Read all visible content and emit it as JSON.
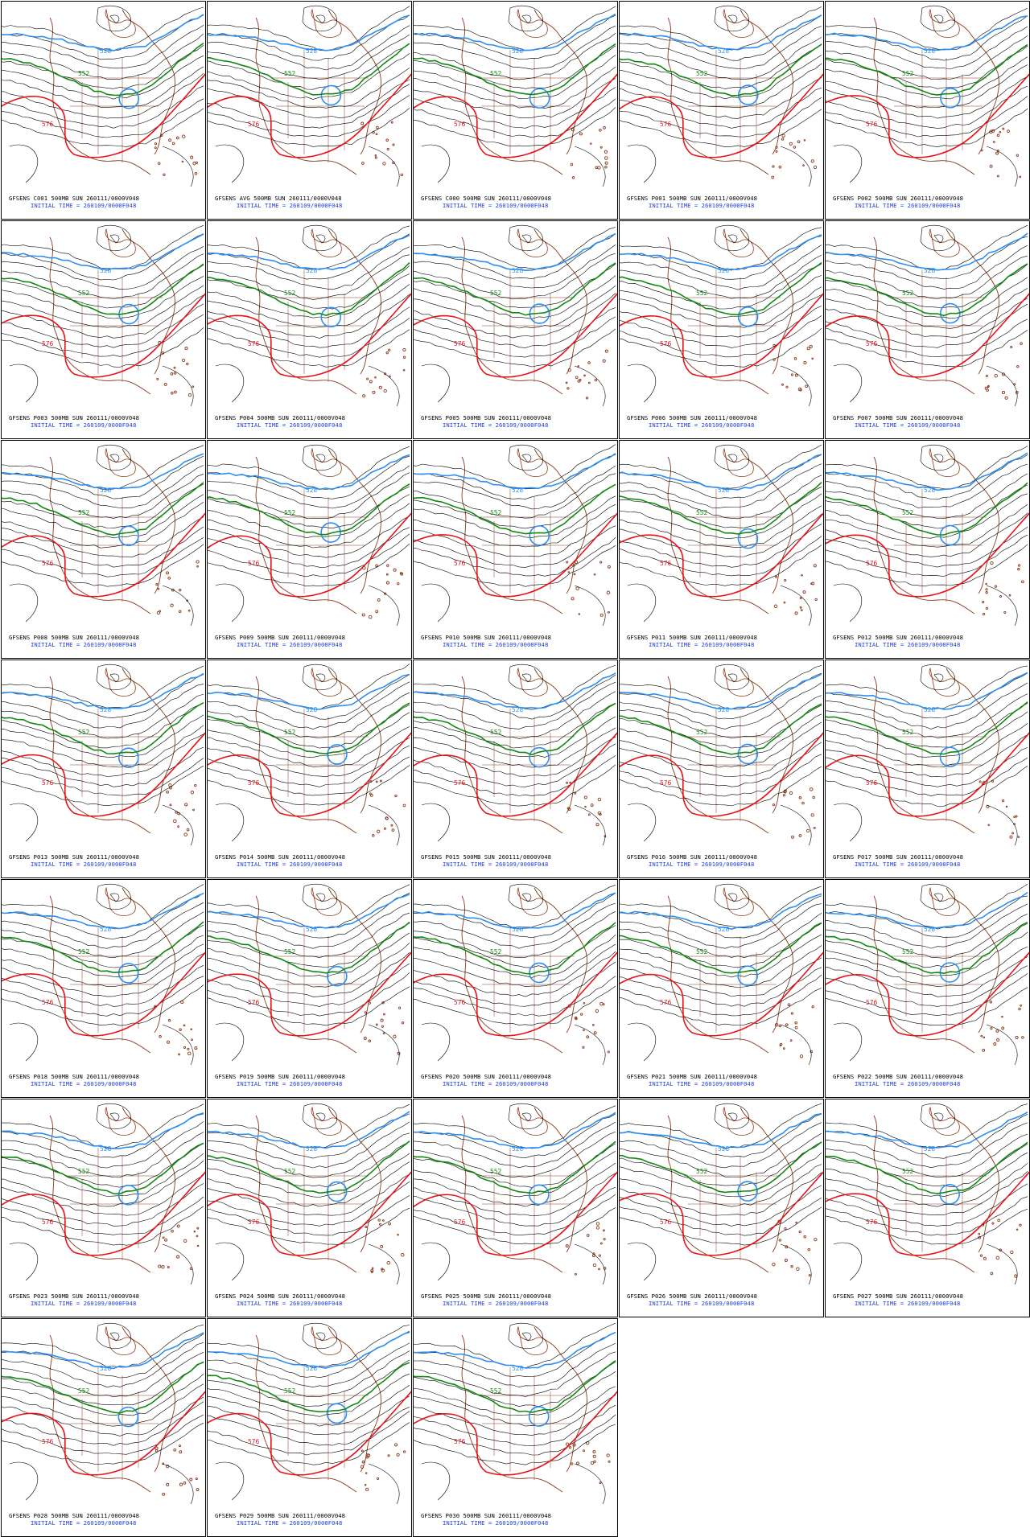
{
  "layout": {
    "columns": 5
  },
  "caption_template": {
    "suffix": " 500MB SUN 260111/0000V048",
    "init_line": "INITIAL TIME = 260109/0000F048"
  },
  "contour_labels": {
    "blue": "528",
    "green": "552",
    "red": "576"
  },
  "colors": {
    "coastline": "#8b3a1a",
    "thin_contour": "#000000",
    "contour_528": "#2d8ff0",
    "contour_552": "#128a12",
    "contour_576": "#e8121a",
    "caption_member": "#000000",
    "caption_init": "#1c3ee0"
  },
  "panels": [
    {
      "member": "GFSENS C001"
    },
    {
      "member": "GFSENS AVG"
    },
    {
      "member": "GFSENS C000"
    },
    {
      "member": "GFSENS P001"
    },
    {
      "member": "GFSENS P002"
    },
    {
      "member": "GFSENS P003"
    },
    {
      "member": "GFSENS P004"
    },
    {
      "member": "GFSENS P005"
    },
    {
      "member": "GFSENS P006"
    },
    {
      "member": "GFSENS P007"
    },
    {
      "member": "GFSENS P008"
    },
    {
      "member": "GFSENS P009"
    },
    {
      "member": "GFSENS P010"
    },
    {
      "member": "GFSENS P011"
    },
    {
      "member": "GFSENS P012"
    },
    {
      "member": "GFSENS P013"
    },
    {
      "member": "GFSENS P014"
    },
    {
      "member": "GFSENS P015"
    },
    {
      "member": "GFSENS P016"
    },
    {
      "member": "GFSENS P017"
    },
    {
      "member": "GFSENS P018"
    },
    {
      "member": "GFSENS P019"
    },
    {
      "member": "GFSENS P020"
    },
    {
      "member": "GFSENS P021"
    },
    {
      "member": "GFSENS P022"
    },
    {
      "member": "GFSENS P023"
    },
    {
      "member": "GFSENS P024"
    },
    {
      "member": "GFSENS P025"
    },
    {
      "member": "GFSENS P026"
    },
    {
      "member": "GFSENS P027"
    },
    {
      "member": "GFSENS P028"
    },
    {
      "member": "GFSENS P029"
    },
    {
      "member": "GFSENS P030"
    }
  ]
}
